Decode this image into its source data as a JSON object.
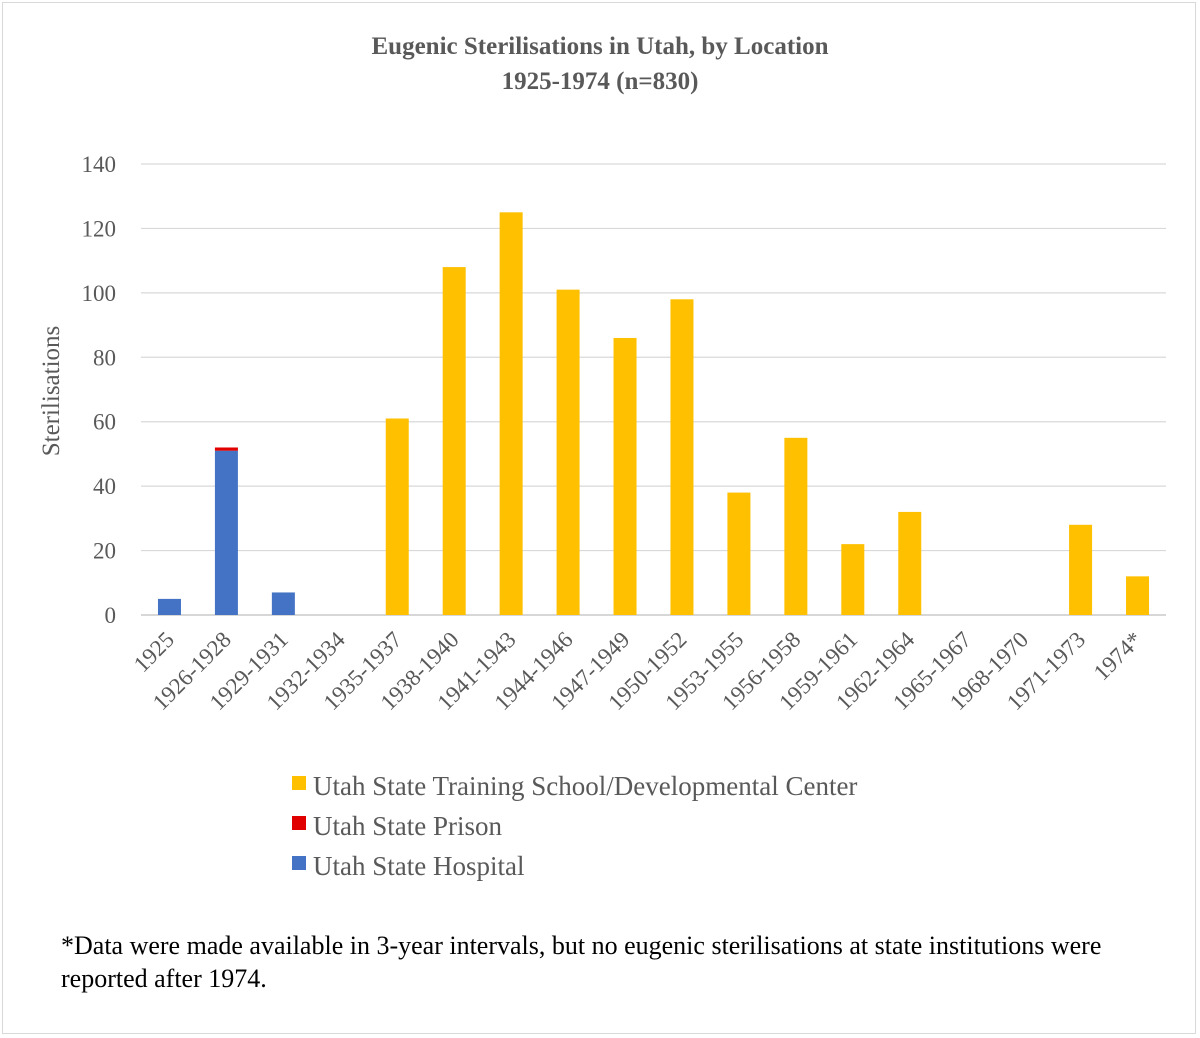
{
  "chart_data": {
    "type": "bar",
    "stacked": true,
    "title": "Eugenic Sterilisations in Utah, by Location",
    "subtitle": "1925-1974 (n=830)",
    "ylabel": "Sterilisations",
    "xlabel": "",
    "ylim": [
      0,
      140
    ],
    "yticks": [
      0,
      20,
      40,
      60,
      80,
      100,
      120,
      140
    ],
    "grid": true,
    "legend_position": "bottom",
    "categories": [
      "1925",
      "1926-1928",
      "1929-1931",
      "1932-1934",
      "1935-1937",
      "1938-1940",
      "1941-1943",
      "1944-1946",
      "1947-1949",
      "1950-1952",
      "1953-1955",
      "1956-1958",
      "1959-1961",
      "1962-1964",
      "1965-1967",
      "1968-1970",
      "1971-1973",
      "1974*"
    ],
    "series": [
      {
        "name": "Utah State Hospital",
        "color": "#4472c4",
        "values": [
          5,
          51,
          7,
          0,
          0,
          0,
          0,
          0,
          0,
          0,
          0,
          0,
          0,
          0,
          0,
          0,
          0,
          0
        ]
      },
      {
        "name": "Utah State Prison",
        "color": "#e00000",
        "values": [
          0,
          1,
          0,
          0,
          0,
          0,
          0,
          0,
          0,
          0,
          0,
          0,
          0,
          0,
          0,
          0,
          0,
          0
        ]
      },
      {
        "name": "Utah State Training School/Developmental Center",
        "color": "#ffc000",
        "values": [
          0,
          0,
          0,
          0,
          61,
          108,
          125,
          101,
          86,
          98,
          38,
          55,
          22,
          32,
          0,
          0,
          28,
          12
        ]
      }
    ],
    "legend_order": [
      2,
      1,
      0
    ]
  },
  "footnote": "*Data were made available in 3-year intervals, but no eugenic sterilisations at state institutions were reported after 1974."
}
